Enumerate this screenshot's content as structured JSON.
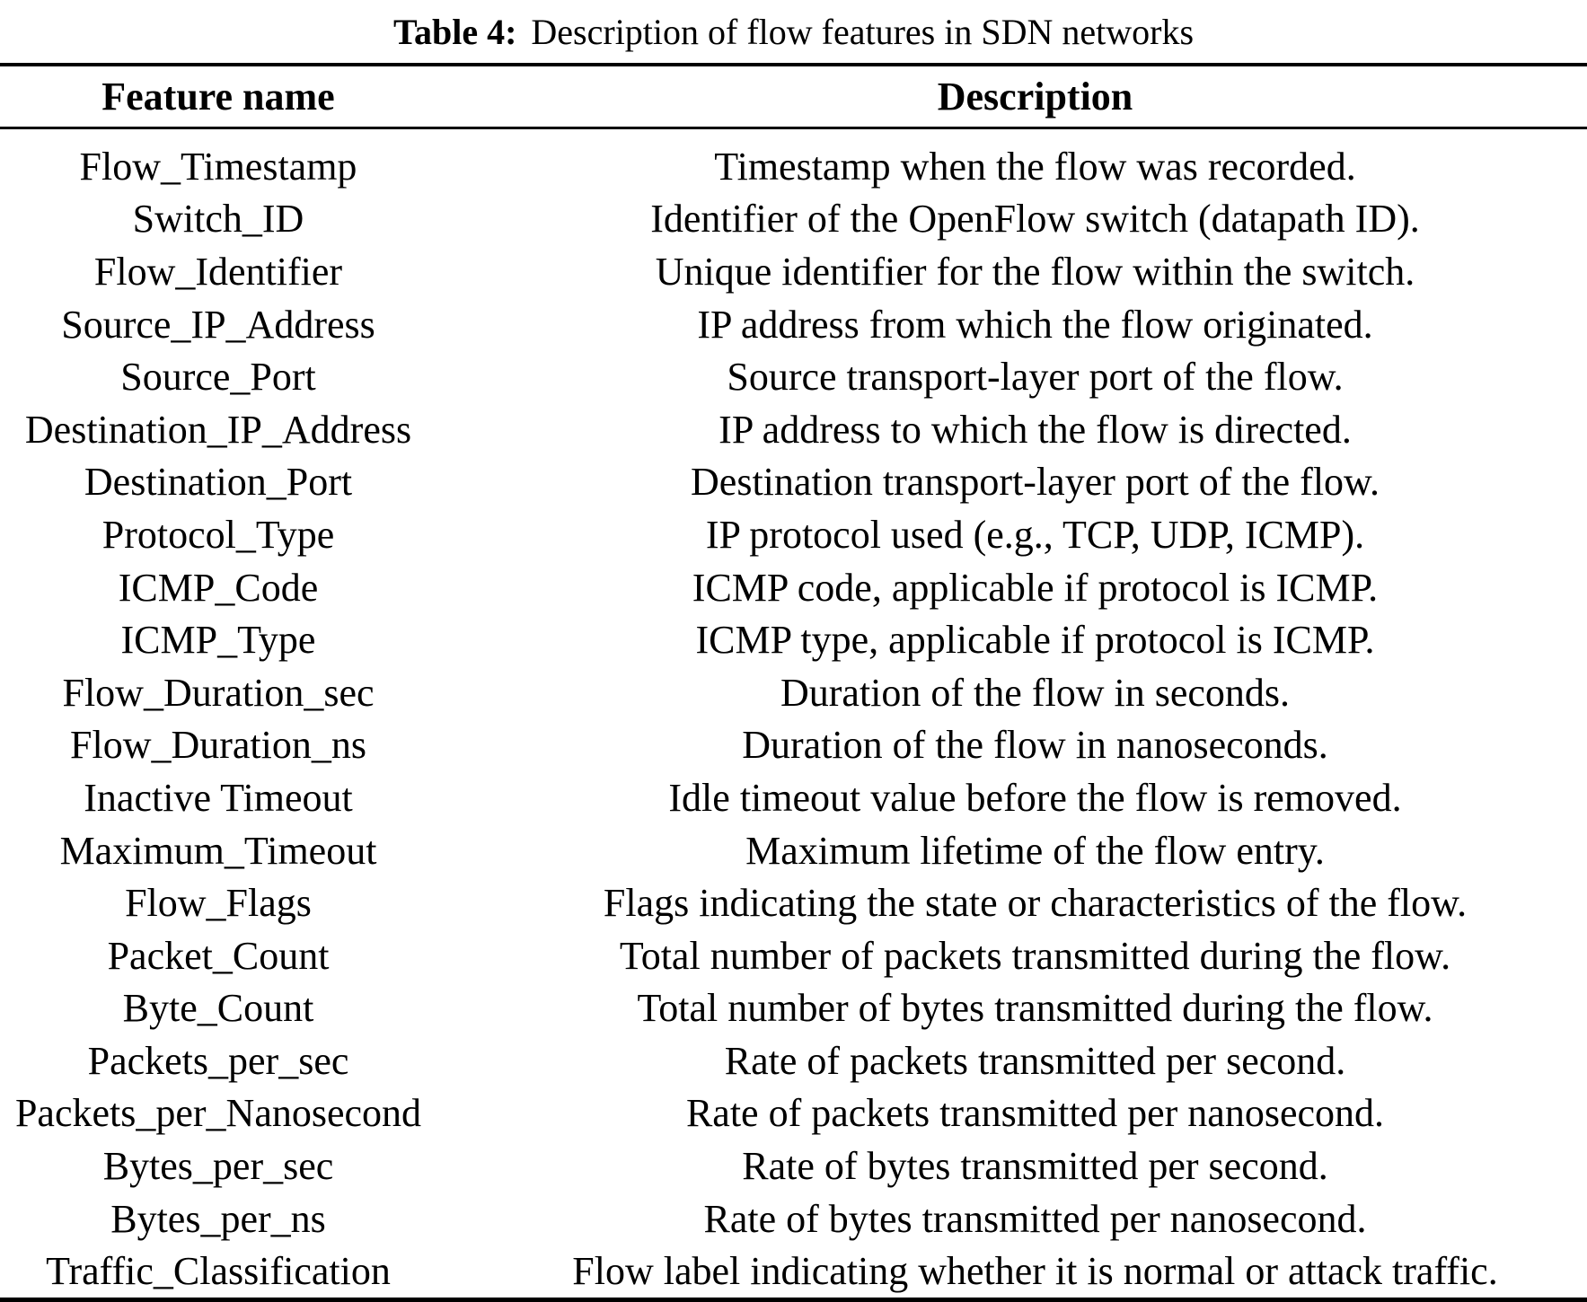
{
  "title": {
    "label": "Table 4:",
    "text": "Description of flow features in SDN networks"
  },
  "table": {
    "col_feature": "Feature name",
    "col_description": "Description",
    "rows": [
      {
        "feature": "Flow_Timestamp",
        "description": "Timestamp when the flow was recorded."
      },
      {
        "feature": "Switch_ID",
        "description": "Identifier of the OpenFlow switch (datapath ID)."
      },
      {
        "feature": "Flow_Identifier",
        "description": "Unique identifier for the flow within the switch."
      },
      {
        "feature": "Source_IP_Address",
        "description": "IP address from which the flow originated."
      },
      {
        "feature": "Source_Port",
        "description": "Source transport-layer port of the flow."
      },
      {
        "feature": "Destination_IP_Address",
        "description": "IP address to which the flow is directed."
      },
      {
        "feature": "Destination_Port",
        "description": "Destination transport-layer port of the flow."
      },
      {
        "feature": "Protocol_Type",
        "description": "IP protocol used (e.g., TCP, UDP, ICMP)."
      },
      {
        "feature": "ICMP_Code",
        "description": "ICMP code, applicable if protocol is ICMP."
      },
      {
        "feature": "ICMP_Type",
        "description": "ICMP type, applicable if protocol is ICMP."
      },
      {
        "feature": "Flow_Duration_sec",
        "description": "Duration of the flow in seconds."
      },
      {
        "feature": "Flow_Duration_ns",
        "description": "Duration of the flow in nanoseconds."
      },
      {
        "feature": "Inactive Timeout",
        "description": "Idle timeout value before the flow is removed."
      },
      {
        "feature": "Maximum_Timeout",
        "description": "Maximum lifetime of the flow entry."
      },
      {
        "feature": "Flow_Flags",
        "description": "Flags indicating the state or characteristics of the flow."
      },
      {
        "feature": "Packet_Count",
        "description": "Total number of packets transmitted during the flow."
      },
      {
        "feature": "Byte_Count",
        "description": "Total number of bytes transmitted during the flow."
      },
      {
        "feature": "Packets_per_sec",
        "description": "Rate of packets transmitted per second."
      },
      {
        "feature": "Packets_per_Nanosecond",
        "description": "Rate of packets transmitted per nanosecond."
      },
      {
        "feature": "Bytes_per_sec",
        "description": "Rate of bytes transmitted per second."
      },
      {
        "feature": "Bytes_per_ns",
        "description": "Rate of bytes transmitted per nanosecond."
      },
      {
        "feature": "Traffic_Classification",
        "description": "Flow label indicating whether it is normal or attack traffic."
      }
    ]
  }
}
